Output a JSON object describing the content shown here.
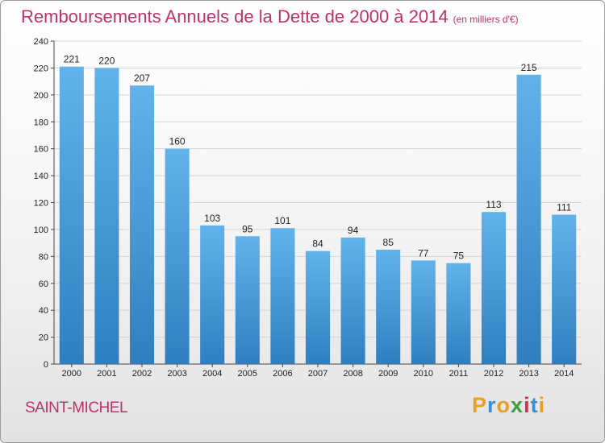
{
  "title": "Remboursements Annuels de la Dette de 2000 à 2014",
  "unit_note": "(en milliers d'€)",
  "commune": "SAINT-MICHEL",
  "logo": {
    "letters": [
      "P",
      "r",
      "o",
      "x",
      "i",
      "t",
      "i"
    ],
    "colors": [
      "#e8a020",
      "#3a8fd0",
      "#e8a020",
      "#3aa040",
      "#d03050",
      "#3a8fd0",
      "#e8a020"
    ]
  },
  "colors": {
    "bar_top": "#62b3ea",
    "bar_bottom": "#2f7fc0",
    "title": "#c0306a"
  },
  "chart_data": {
    "type": "bar",
    "title": "Remboursements Annuels de la Dette de 2000 à 2014",
    "xlabel": "",
    "ylabel": "",
    "categories": [
      "2000",
      "2001",
      "2002",
      "2003",
      "2004",
      "2005",
      "2006",
      "2007",
      "2008",
      "2009",
      "2010",
      "2011",
      "2012",
      "2013",
      "2014"
    ],
    "values": [
      221,
      220,
      207,
      160,
      103,
      95,
      101,
      84,
      94,
      85,
      77,
      75,
      113,
      215,
      111
    ],
    "ylim": [
      0,
      240
    ],
    "yticks": [
      0,
      20,
      40,
      60,
      80,
      100,
      120,
      140,
      160,
      180,
      200,
      220,
      240
    ],
    "grid": true
  }
}
